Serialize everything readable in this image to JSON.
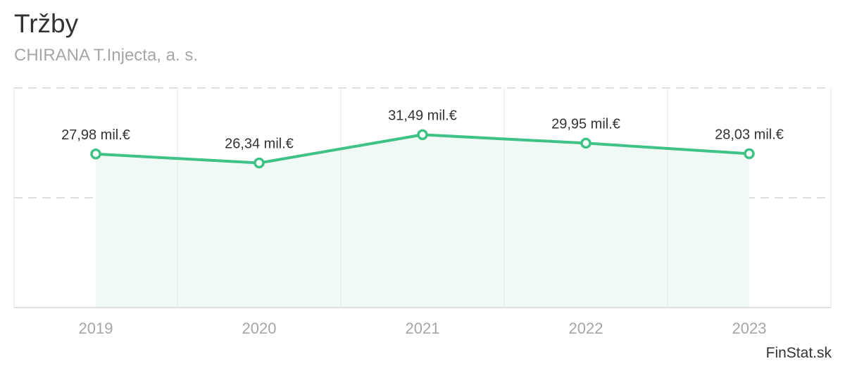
{
  "title": "Tržby",
  "subtitle": "CHIRANA T.Injecta, a. s.",
  "credit": "FinStat.sk",
  "colors": {
    "line": "#3ec286",
    "area": "#f0f9f5",
    "grid": "#e0e0e0",
    "axis": "#e0e0e0"
  },
  "chart_data": {
    "type": "area",
    "categories": [
      "2019",
      "2020",
      "2021",
      "2022",
      "2023"
    ],
    "series": [
      {
        "values": [
          27.98,
          26.34,
          31.49,
          29.95,
          28.03
        ]
      }
    ],
    "data_labels": [
      "27,98 mil.€",
      "26,34 mil.€",
      "31,49 mil.€",
      "29,95 mil.€",
      "28,03 mil.€"
    ],
    "ylim": [
      0,
      40
    ],
    "grid": true,
    "legend": "none"
  }
}
